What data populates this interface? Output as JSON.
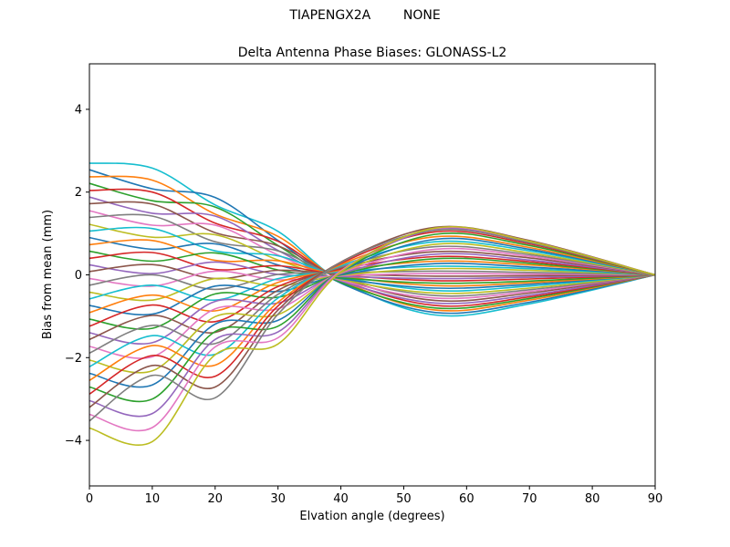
{
  "figure": {
    "suptitle": "TIAPENGX2A        NONE",
    "antenna_name": "TIAPENGX2A",
    "radome": "NONE"
  },
  "chart_data": {
    "type": "line",
    "title": "Delta Antenna Phase Biases: GLONASS-L2",
    "suptitle": "TIAPENGX2A        NONE",
    "xlabel": "Elvation angle (degrees)",
    "ylabel": "Bias from mean (mm)",
    "xlim": [
      0,
      90
    ],
    "ylim": [
      -5.1,
      5.1
    ],
    "xticks": [
      0,
      10,
      20,
      30,
      40,
      50,
      60,
      70,
      80,
      90
    ],
    "yticks": [
      -4,
      -2,
      0,
      2,
      4
    ],
    "grid": false,
    "legend": "none",
    "line_width": 1.6,
    "axis_color": "#000000",
    "background": "#ffffff",
    "palette": [
      "#1f77b4",
      "#ff7f0e",
      "#2ca02c",
      "#d62728",
      "#9467bd",
      "#8c564b",
      "#e377c2",
      "#7f7f7f",
      "#bcbd22",
      "#17becf"
    ],
    "x": [
      0,
      10,
      20,
      30,
      40,
      55,
      70,
      90
    ],
    "series": [
      {
        "color": "#17becf",
        "values": [
          2.7,
          2.58,
          1.69,
          1.05,
          -0.15,
          -0.97,
          -0.7,
          0
        ]
      },
      {
        "color": "#1f77b4",
        "values": [
          2.54,
          2.08,
          1.87,
          0.83,
          -0.2,
          -0.91,
          -0.66,
          0
        ]
      },
      {
        "color": "#ff7f0e",
        "values": [
          2.37,
          2.29,
          1.47,
          0.93,
          -0.13,
          -0.85,
          -0.61,
          0
        ]
      },
      {
        "color": "#2ca02c",
        "values": [
          2.21,
          1.79,
          1.64,
          0.71,
          -0.18,
          -0.8,
          -0.57,
          0
        ]
      },
      {
        "color": "#d62728",
        "values": [
          2.04,
          2.0,
          1.25,
          0.81,
          -0.11,
          -0.74,
          -0.53,
          0
        ]
      },
      {
        "color": "#9467bd",
        "values": [
          1.88,
          1.49,
          1.42,
          0.59,
          -0.15,
          -0.68,
          -0.49,
          0
        ]
      },
      {
        "color": "#8c564b",
        "values": [
          1.72,
          1.71,
          1.02,
          0.7,
          -0.08,
          -0.62,
          -0.44,
          0
        ]
      },
      {
        "color": "#e377c2",
        "values": [
          1.55,
          1.2,
          1.2,
          0.48,
          -0.13,
          -0.56,
          -0.4,
          0
        ]
      },
      {
        "color": "#7f7f7f",
        "values": [
          1.39,
          1.42,
          0.8,
          0.58,
          -0.06,
          -0.5,
          -0.36,
          0
        ]
      },
      {
        "color": "#bcbd22",
        "values": [
          1.22,
          0.91,
          0.97,
          0.36,
          -0.11,
          -0.44,
          -0.32,
          0
        ]
      },
      {
        "color": "#17becf",
        "values": [
          1.06,
          1.12,
          0.58,
          0.46,
          -0.04,
          -0.38,
          -0.27,
          0
        ]
      },
      {
        "color": "#1f77b4",
        "values": [
          0.9,
          0.62,
          0.75,
          0.24,
          -0.09,
          -0.32,
          -0.23,
          0
        ]
      },
      {
        "color": "#ff7f0e",
        "values": [
          0.73,
          0.83,
          0.35,
          0.34,
          -0.02,
          -0.26,
          -0.19,
          0
        ]
      },
      {
        "color": "#2ca02c",
        "values": [
          0.57,
          0.33,
          0.53,
          0.12,
          -0.07,
          -0.2,
          -0.15,
          0
        ]
      },
      {
        "color": "#d62728",
        "values": [
          0.4,
          0.54,
          0.13,
          0.22,
          0.0,
          -0.14,
          -0.1,
          0
        ]
      },
      {
        "color": "#9467bd",
        "values": [
          0.24,
          0.03,
          0.31,
          0.01,
          -0.04,
          -0.09,
          -0.06,
          0
        ]
      },
      {
        "color": "#8c564b",
        "values": [
          0.08,
          0.25,
          -0.09,
          0.11,
          0.02,
          -0.03,
          -0.02,
          0
        ]
      },
      {
        "color": "#e377c2",
        "values": [
          -0.09,
          -0.27,
          0.09,
          -0.12,
          -0.02,
          0.03,
          0.02,
          0
        ]
      },
      {
        "color": "#7f7f7f",
        "values": [
          -0.25,
          0.0,
          -0.35,
          0.01,
          0.05,
          0.09,
          0.06,
          0
        ]
      },
      {
        "color": "#bcbd22",
        "values": [
          -0.42,
          -0.61,
          -0.09,
          -0.26,
          -0.01,
          0.15,
          0.11,
          0
        ]
      },
      {
        "color": "#17becf",
        "values": [
          -0.58,
          -0.25,
          -0.61,
          -0.09,
          0.08,
          0.21,
          0.15,
          0
        ]
      },
      {
        "color": "#1f77b4",
        "values": [
          -0.74,
          -0.95,
          -0.27,
          -0.4,
          0.0,
          0.27,
          0.19,
          0
        ]
      },
      {
        "color": "#ff7f0e",
        "values": [
          -0.91,
          -0.49,
          -0.87,
          -0.18,
          0.11,
          0.33,
          0.24,
          0
        ]
      },
      {
        "color": "#2ca02c",
        "values": [
          -1.07,
          -1.29,
          -0.46,
          -0.54,
          0.02,
          0.39,
          0.28,
          0
        ]
      },
      {
        "color": "#d62728",
        "values": [
          -1.24,
          -0.73,
          -1.13,
          -0.28,
          0.14,
          0.44,
          0.32,
          0
        ]
      },
      {
        "color": "#9467bd",
        "values": [
          -1.4,
          -1.64,
          -0.64,
          -0.68,
          0.03,
          0.5,
          0.36,
          0
        ]
      },
      {
        "color": "#8c564b",
        "values": [
          -1.56,
          -0.98,
          -1.39,
          -0.37,
          0.17,
          0.56,
          0.41,
          0
        ]
      },
      {
        "color": "#e377c2",
        "values": [
          -1.73,
          -1.98,
          -0.82,
          -0.82,
          0.05,
          0.62,
          0.45,
          0
        ]
      },
      {
        "color": "#7f7f7f",
        "values": [
          -1.89,
          -1.22,
          -1.66,
          -0.47,
          0.19,
          0.68,
          0.49,
          0
        ]
      },
      {
        "color": "#bcbd22",
        "values": [
          -2.06,
          -2.32,
          -1.01,
          -0.96,
          0.06,
          0.74,
          0.53,
          0
        ]
      },
      {
        "color": "#17becf",
        "values": [
          -2.22,
          -1.47,
          -1.92,
          -0.56,
          0.22,
          0.8,
          0.58,
          0
        ]
      },
      {
        "color": "#1f77b4",
        "values": [
          -2.38,
          -2.66,
          -1.19,
          -1.1,
          0.08,
          0.86,
          0.62,
          0
        ]
      },
      {
        "color": "#ff7f0e",
        "values": [
          -2.55,
          -1.71,
          -2.18,
          -0.66,
          0.25,
          0.92,
          0.66,
          0
        ]
      },
      {
        "color": "#2ca02c",
        "values": [
          -2.71,
          -3.0,
          -1.37,
          -1.24,
          0.09,
          0.98,
          0.71,
          0
        ]
      },
      {
        "color": "#d62728",
        "values": [
          -2.88,
          -1.95,
          -2.45,
          -0.75,
          0.28,
          1.04,
          0.75,
          0
        ]
      },
      {
        "color": "#9467bd",
        "values": [
          -3.04,
          -3.35,
          -1.56,
          -1.38,
          0.1,
          1.09,
          0.78,
          0
        ]
      },
      {
        "color": "#8c564b",
        "values": [
          -3.2,
          -2.19,
          -2.71,
          -0.85,
          0.31,
          1.15,
          0.83,
          0
        ]
      },
      {
        "color": "#e377c2",
        "values": [
          -3.37,
          -3.69,
          -1.74,
          -1.52,
          0.1,
          1.12,
          0.81,
          0
        ]
      },
      {
        "color": "#7f7f7f",
        "values": [
          -3.53,
          -2.43,
          -2.97,
          -0.95,
          0.3,
          1.08,
          0.78,
          0
        ]
      },
      {
        "color": "#bcbd22",
        "values": [
          -3.7,
          -4.03,
          -1.93,
          -1.67,
          0.07,
          1.13,
          0.81,
          0
        ]
      }
    ]
  }
}
